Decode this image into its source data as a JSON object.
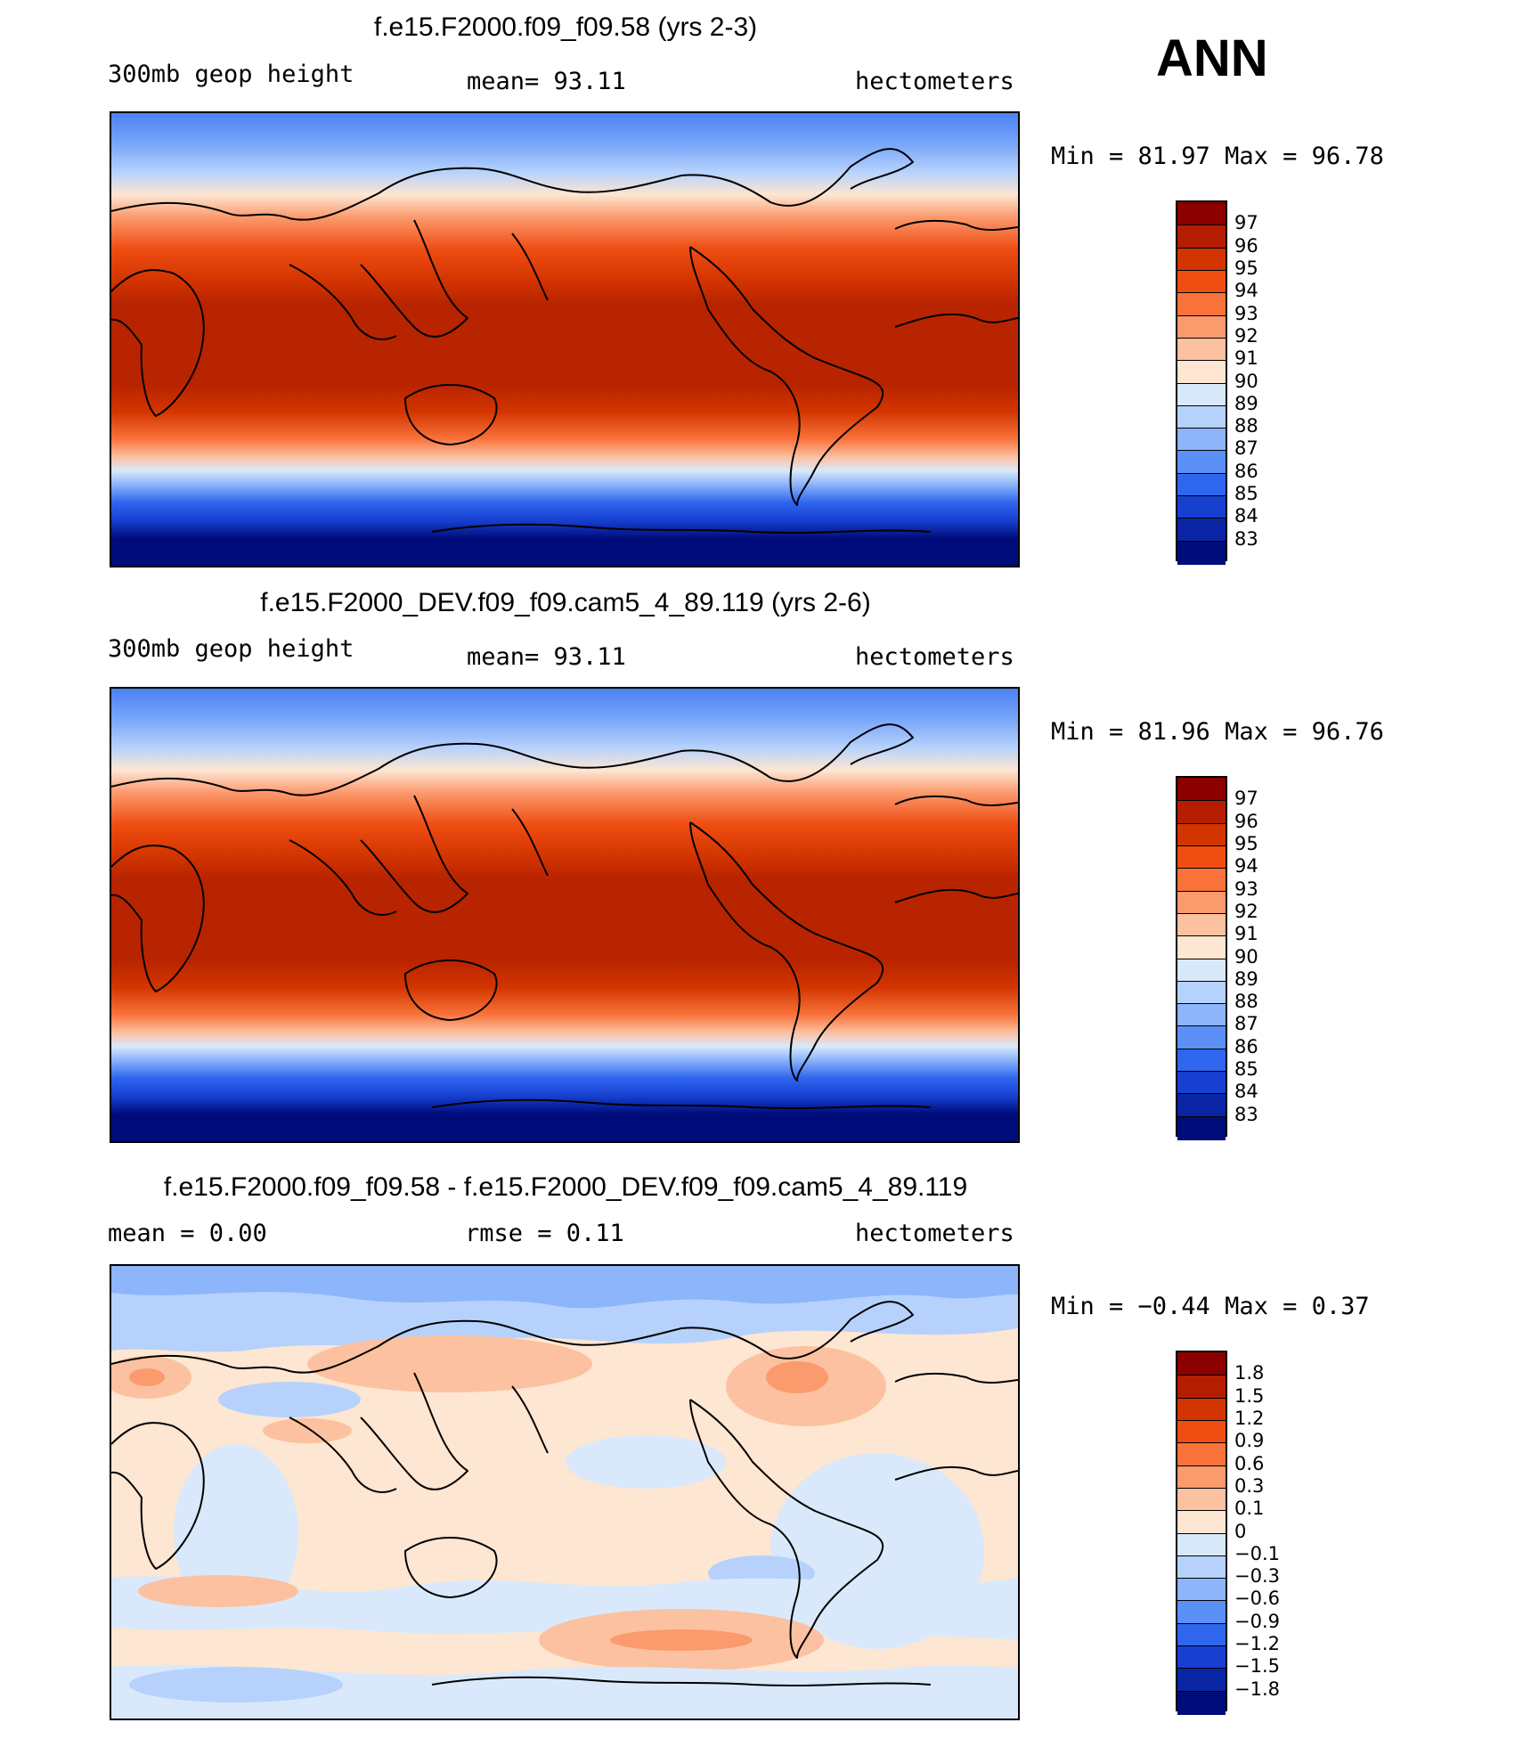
{
  "season": "ANN",
  "panels": [
    {
      "title": "f.e15.F2000.f09_f09.58 (yrs 2-3)",
      "left_label": "300mb  geop  height",
      "center_label": "mean=   93.11",
      "right_label": "hectometers",
      "minmax": "Min  =   81.97  Max  =   96.78",
      "kind": "abs",
      "colorbar": [
        "97",
        "96",
        "95",
        "94",
        "93",
        "92",
        "91",
        "90",
        "89",
        "88",
        "87",
        "86",
        "85",
        "84",
        "83"
      ],
      "colors": [
        "#8c0000",
        "#b51d00",
        "#d33500",
        "#ef4d12",
        "#f9733a",
        "#fb9a6d",
        "#fcc1a0",
        "#fde6d2",
        "#d9e9fb",
        "#b6d2fc",
        "#8cb5fb",
        "#5b90f7",
        "#2f66ee",
        "#1740d1",
        "#0a25a4",
        "#000c7a"
      ]
    },
    {
      "title": "f.e15.F2000_DEV.f09_f09.cam5_4_89.119 (yrs 2-6)",
      "left_label": "300mb  geop  height",
      "center_label": "mean=   93.11",
      "right_label": "hectometers",
      "minmax": "Min  =   81.96  Max  =   96.76",
      "kind": "abs",
      "colorbar": [
        "97",
        "96",
        "95",
        "94",
        "93",
        "92",
        "91",
        "90",
        "89",
        "88",
        "87",
        "86",
        "85",
        "84",
        "83"
      ],
      "colors": [
        "#8c0000",
        "#b51d00",
        "#d33500",
        "#ef4d12",
        "#f9733a",
        "#fb9a6d",
        "#fcc1a0",
        "#fde6d2",
        "#d9e9fb",
        "#b6d2fc",
        "#8cb5fb",
        "#5b90f7",
        "#2f66ee",
        "#1740d1",
        "#0a25a4",
        "#000c7a"
      ]
    },
    {
      "title": "f.e15.F2000.f09_f09.58 - f.e15.F2000_DEV.f09_f09.cam5_4_89.119",
      "left_label": "mean  =     0.00",
      "center_label": "rmse  =     0.11",
      "right_label": "hectometers",
      "minmax": "Min  =   −0.44  Max  =     0.37",
      "kind": "diff",
      "colorbar": [
        "1.8",
        "1.5",
        "1.2",
        "0.9",
        "0.6",
        "0.3",
        "0.1",
        "0",
        "−0.1",
        "−0.3",
        "−0.6",
        "−0.9",
        "−1.2",
        "−1.5",
        "−1.8"
      ],
      "colors": [
        "#8c0000",
        "#b51d00",
        "#d33500",
        "#ef4d12",
        "#f9733a",
        "#fb9a6d",
        "#fcc1a0",
        "#fde6d2",
        "#d9e9fb",
        "#b6d2fc",
        "#8cb5fb",
        "#5b90f7",
        "#2f66ee",
        "#1740d1",
        "#0a25a4",
        "#000c7a"
      ]
    }
  ]
}
